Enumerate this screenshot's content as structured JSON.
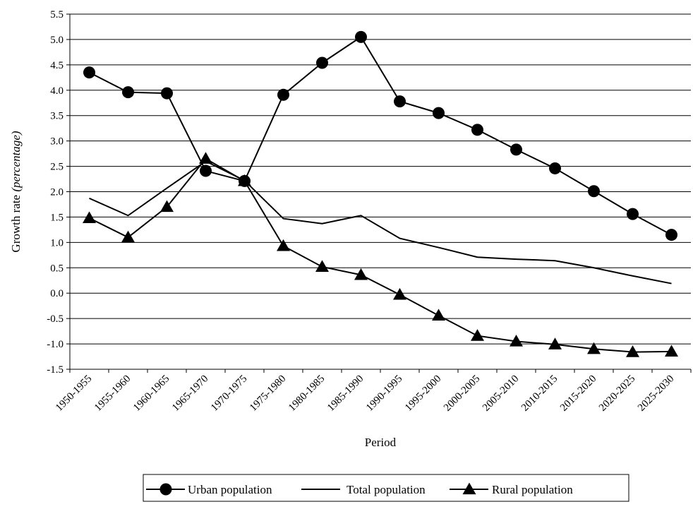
{
  "chart_data": {
    "type": "line",
    "title": "",
    "xlabel": "Period",
    "ylabel_main": "Growth rate ",
    "ylabel_italic": "(percentage)",
    "ylim": [
      -1.5,
      5.5
    ],
    "y_ticks": [
      "5.5",
      "5.0",
      "4.5",
      "4.0",
      "3.5",
      "3.0",
      "2.5",
      "2.0",
      "1.5",
      "1.0",
      "0.5",
      "0.0",
      "-0.5",
      "-1.0",
      "-1.5"
    ],
    "y_tick_values": [
      5.5,
      5.0,
      4.5,
      4.0,
      3.5,
      3.0,
      2.5,
      2.0,
      1.5,
      1.0,
      0.5,
      0.0,
      -0.5,
      -1.0,
      -1.5
    ],
    "grid": "horizontal",
    "legend_position": "bottom",
    "categories": [
      "1950-1955",
      "1955-1960",
      "1960-1965",
      "1965-1970",
      "1970-1975",
      "1975-1980",
      "1980-1985",
      "1985-1990",
      "1990-1995",
      "1995-2000",
      "2000-2005",
      "2005-2010",
      "2010-2015",
      "2015-2020",
      "2020-2025",
      "2025-2030"
    ],
    "series": [
      {
        "name": "Urban population",
        "marker": "circle",
        "color": "#000000",
        "values": [
          4.35,
          3.96,
          3.94,
          2.41,
          2.21,
          3.91,
          4.54,
          5.05,
          3.78,
          3.55,
          3.22,
          2.83,
          2.46,
          2.01,
          1.56,
          1.15
        ]
      },
      {
        "name": "Total population",
        "marker": "none",
        "color": "#000000",
        "values": [
          1.87,
          1.53,
          2.07,
          2.6,
          2.22,
          1.47,
          1.37,
          1.53,
          1.08,
          0.9,
          0.71,
          0.67,
          0.64,
          0.5,
          0.34,
          0.19
        ]
      },
      {
        "name": "Rural population",
        "marker": "triangle",
        "color": "#000000",
        "values": [
          1.48,
          1.1,
          1.7,
          2.65,
          2.21,
          0.93,
          0.52,
          0.36,
          -0.03,
          -0.44,
          -0.84,
          -0.95,
          -1.01,
          -1.1,
          -1.16,
          -1.15
        ]
      }
    ]
  }
}
